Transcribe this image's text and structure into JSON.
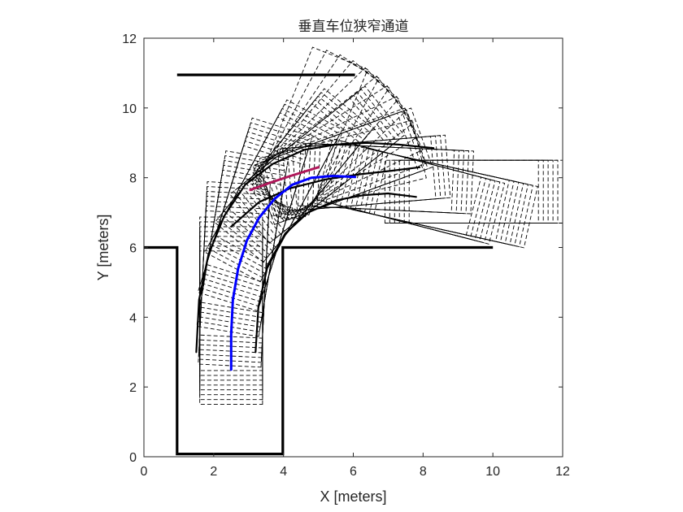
{
  "chart_data": {
    "type": "line",
    "title": "垂直车位狭窄通道",
    "xlabel": "X [meters]",
    "ylabel": "Y [meters]",
    "xlim": [
      0,
      12
    ],
    "ylim": [
      0,
      12
    ],
    "xticks": [
      0,
      2,
      4,
      6,
      8,
      10,
      12
    ],
    "yticks": [
      0,
      2,
      4,
      6,
      8,
      10,
      12
    ],
    "grid": false,
    "colors": {
      "walls": "#000000",
      "vehicle_outlines": "#000000",
      "reference_path": "#0000ff",
      "alternate_path": "#b0185a",
      "axes": "#262626"
    },
    "series": [
      {
        "name": "parking-slot-walls",
        "style": "solid-thick",
        "segments": [
          [
            [
              0,
              6
            ],
            [
              0.95,
              6
            ],
            [
              0.95,
              0.08
            ],
            [
              3.98,
              0.08
            ],
            [
              3.98,
              6
            ],
            [
              10,
              6
            ]
          ],
          [
            [
              0.95,
              10.95
            ],
            [
              6.05,
              10.95
            ]
          ]
        ]
      },
      {
        "name": "planned-path",
        "style": "solid-blue",
        "x": [
          2.5,
          2.5,
          2.55,
          2.7,
          2.95,
          3.3,
          3.75,
          4.25,
          4.8,
          5.4,
          6.05
        ],
        "y": [
          2.5,
          3.5,
          4.5,
          5.4,
          6.2,
          6.85,
          7.4,
          7.8,
          8.0,
          8.05,
          8.02
        ]
      },
      {
        "name": "alternate-path",
        "style": "solid-magenta",
        "x": [
          3.05,
          3.6,
          4.2,
          5.0
        ],
        "y": [
          7.65,
          7.85,
          8.05,
          8.3
        ]
      },
      {
        "name": "swept-boundary-left",
        "style": "solid-black",
        "x": [
          1.5,
          1.58,
          1.85,
          2.3,
          2.9,
          3.7,
          4.6,
          5.5,
          6.4,
          7.3,
          8.3
        ],
        "y": [
          3.0,
          4.5,
          5.8,
          6.9,
          7.8,
          8.4,
          8.8,
          8.95,
          9.0,
          8.95,
          8.85
        ]
      },
      {
        "name": "swept-boundary-right",
        "style": "solid-black",
        "x": [
          3.2,
          3.28,
          3.55,
          4.05,
          4.7,
          5.5,
          6.3,
          7.0,
          7.8
        ],
        "y": [
          3.0,
          4.3,
          5.5,
          6.4,
          7.0,
          7.35,
          7.5,
          7.55,
          7.45
        ]
      },
      {
        "name": "swept-boundary-mid",
        "style": "solid-black",
        "x": [
          2.5,
          3.3,
          4.2,
          5.2,
          6.2,
          7.1,
          7.9
        ],
        "y": [
          6.6,
          7.3,
          7.7,
          7.95,
          8.1,
          8.2,
          8.3
        ]
      },
      {
        "name": "vehicle-footprints",
        "style": "dashed-black",
        "centerline": {
          "x": [
            2.5,
            2.5,
            2.55,
            2.7,
            2.95,
            3.3,
            3.75,
            4.25,
            4.8,
            5.4,
            6.05,
            6.9,
            7.8,
            8.6
          ],
          "y": [
            2.5,
            3.5,
            4.5,
            5.4,
            6.2,
            6.85,
            7.4,
            7.8,
            8.0,
            8.05,
            8.02,
            7.8,
            7.6,
            7.6
          ]
        },
        "rear_overhang_m": 1.0,
        "front_overhang_m": 3.4,
        "half_width_m": 0.9,
        "footprint_count": 75
      },
      {
        "name": "fanned-footprints",
        "style": "dashed-black",
        "pivot": [
          4.2,
          7.9
        ],
        "headings_deg": [
          14,
          20,
          26,
          32,
          38,
          44,
          50,
          56,
          62,
          68
        ],
        "rear_overhang_m": 0.7,
        "front_overhang_m": 3.8,
        "half_width_m": 0.85
      }
    ]
  }
}
